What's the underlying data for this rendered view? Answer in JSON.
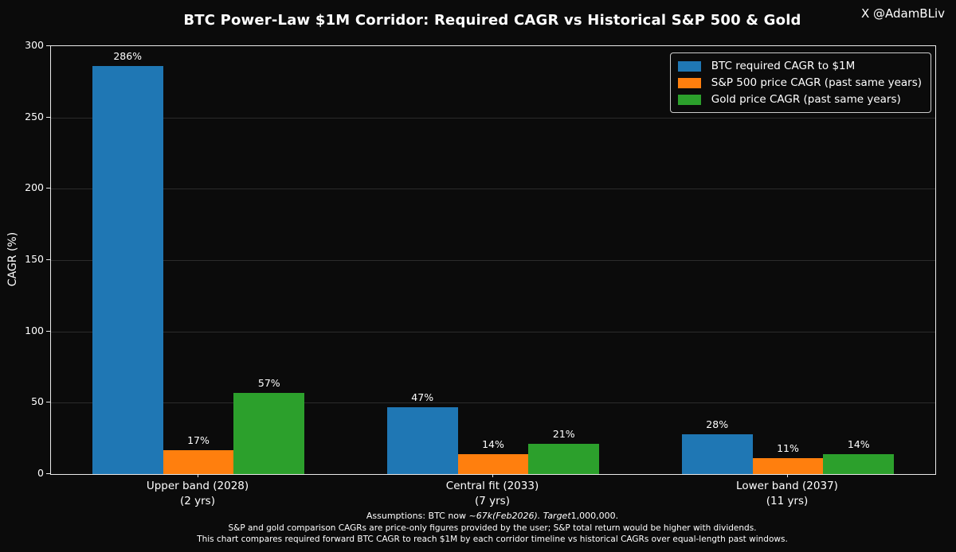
{
  "title": "BTC Power-Law $1M Corridor: Required CAGR vs Historical S&P 500 & Gold",
  "watermark": "X @AdamBLiv",
  "colors": {
    "figure_background": "#0b0b0b",
    "plot_background": "#0b0b0b",
    "text": "#ffffff",
    "grid": "#2b2b2b",
    "spine": "#eaeaea",
    "legend_border": "#cccccc"
  },
  "chart_data": {
    "type": "bar",
    "title": "BTC Power-Law $1M Corridor: Required CAGR vs Historical S&P 500 & Gold",
    "xlabel": "",
    "ylabel": "CAGR (%)",
    "ylim": [
      0,
      300
    ],
    "yticks": [
      0,
      50,
      100,
      150,
      200,
      250,
      300
    ],
    "grid": true,
    "legend_position": "top-right inside",
    "categories": [
      {
        "line1": "Upper band (2028)",
        "line2": "(2 yrs)"
      },
      {
        "line1": "Central fit (2033)",
        "line2": "(7 yrs)"
      },
      {
        "line1": "Lower band (2037)",
        "line2": "(11 yrs)"
      }
    ],
    "series": [
      {
        "name": "BTC required CAGR to $1M",
        "color": "#1f77b4",
        "values": [
          286,
          47,
          28
        ],
        "bar_labels": [
          "286%",
          "47%",
          "28%"
        ]
      },
      {
        "name": "S&P 500 price CAGR (past same years)",
        "color": "#ff7f0e",
        "values": [
          17,
          14,
          11
        ],
        "bar_labels": [
          "17%",
          "14%",
          "11%"
        ]
      },
      {
        "name": "Gold price CAGR (past same years)",
        "color": "#2ca02c",
        "values": [
          57,
          21,
          14
        ],
        "bar_labels": [
          "57%",
          "21%",
          "14%"
        ]
      }
    ]
  },
  "footnotes": [
    {
      "segments": [
        {
          "text": "Assumptions: BTC now ~",
          "italic": false
        },
        {
          "text": "67k(Feb2026). Target",
          "italic": true
        },
        {
          "text": "1,000,000.",
          "italic": false
        }
      ]
    },
    {
      "segments": [
        {
          "text": "S&P and gold comparison CAGRs are price-only figures provided by the user; S&P total return would be higher with dividends.",
          "italic": false
        }
      ]
    },
    {
      "segments": [
        {
          "text": "This chart compares required forward BTC CAGR to reach $1M by each corridor timeline vs historical CAGRs over equal-length past windows.",
          "italic": false
        }
      ]
    }
  ]
}
